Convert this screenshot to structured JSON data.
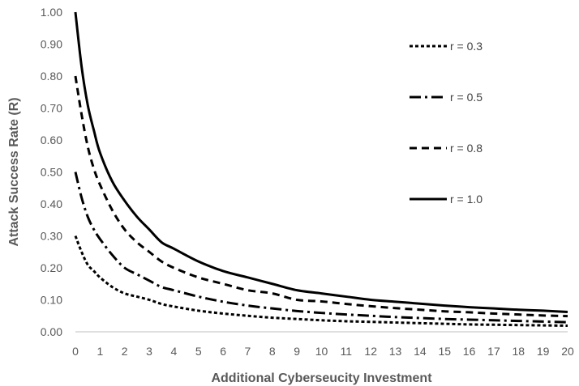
{
  "chart_data": {
    "type": "line",
    "title": "",
    "xlabel": "Additional Cyberseucity Investment",
    "ylabel": "Attack Success Rate (R)",
    "xlim": [
      0,
      20
    ],
    "ylim": [
      0,
      1
    ],
    "x_ticks": [
      "0",
      "1",
      "2",
      "3",
      "4",
      "5",
      "6",
      "7",
      "8",
      "9",
      "10",
      "11",
      "12",
      "13",
      "14",
      "15",
      "16",
      "17",
      "18",
      "19",
      "20"
    ],
    "y_ticks": [
      "0.00",
      "0.10",
      "0.20",
      "0.30",
      "0.40",
      "0.50",
      "0.60",
      "0.70",
      "0.80",
      "0.90",
      "1.00"
    ],
    "grid": false,
    "legend_position": "top-right",
    "x": [
      0,
      0.25,
      0.5,
      0.75,
      1,
      1.5,
      2,
      2.5,
      3,
      3.5,
      4,
      5,
      6,
      7,
      8,
      9,
      10,
      11,
      12,
      13,
      14,
      15,
      16,
      17,
      18,
      19,
      20
    ],
    "series": [
      {
        "name": "r = 0.3",
        "style": "dotted",
        "values": [
          0.3,
          0.25,
          0.21,
          0.19,
          0.17,
          0.14,
          0.12,
          0.11,
          0.1,
          0.087,
          0.079,
          0.066,
          0.057,
          0.05,
          0.044,
          0.04,
          0.036,
          0.033,
          0.031,
          0.029,
          0.027,
          0.025,
          0.023,
          0.022,
          0.021,
          0.02,
          0.019
        ]
      },
      {
        "name": "r = 0.5",
        "style": "dash-dot",
        "values": [
          0.5,
          0.42,
          0.36,
          0.32,
          0.29,
          0.24,
          0.2,
          0.18,
          0.16,
          0.14,
          0.13,
          0.11,
          0.094,
          0.082,
          0.073,
          0.065,
          0.059,
          0.054,
          0.05,
          0.046,
          0.043,
          0.04,
          0.038,
          0.036,
          0.034,
          0.032,
          0.03
        ]
      },
      {
        "name": "r = 0.8",
        "style": "dashed",
        "values": [
          0.8,
          0.68,
          0.58,
          0.51,
          0.46,
          0.38,
          0.32,
          0.28,
          0.25,
          0.22,
          0.2,
          0.17,
          0.15,
          0.13,
          0.12,
          0.1,
          0.095,
          0.087,
          0.08,
          0.074,
          0.069,
          0.064,
          0.061,
          0.057,
          0.054,
          0.051,
          0.049
        ]
      },
      {
        "name": "r = 1.0",
        "style": "solid",
        "values": [
          1.0,
          0.83,
          0.71,
          0.63,
          0.56,
          0.47,
          0.41,
          0.36,
          0.32,
          0.28,
          0.26,
          0.22,
          0.19,
          0.17,
          0.15,
          0.13,
          0.12,
          0.11,
          0.1,
          0.094,
          0.088,
          0.082,
          0.077,
          0.073,
          0.069,
          0.066,
          0.062
        ]
      }
    ]
  }
}
